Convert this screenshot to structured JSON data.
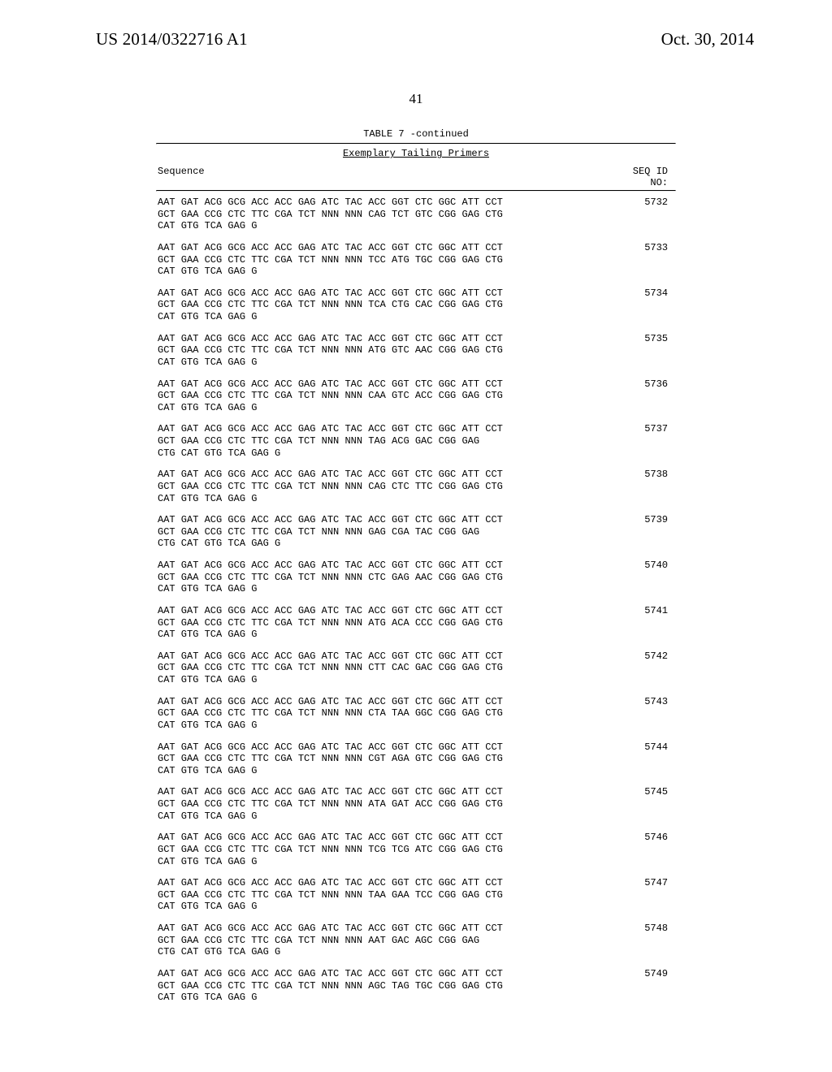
{
  "header": {
    "patent_number": "US 2014/0322716 A1",
    "date": "Oct. 30, 2014"
  },
  "page_number": "41",
  "table": {
    "caption": "TABLE 7 -continued",
    "subheading": "Exemplary Tailing Primers",
    "col_left": "Sequence",
    "col_right_line1": "SEQ ID",
    "col_right_line2": "NO:"
  },
  "entries": [
    {
      "seq": "AAT GAT ACG GCG ACC ACC GAG ATC TAC ACC GGT CTC GGC ATT CCT\nGCT GAA CCG CTC TTC CGA TCT NNN NNN CAG TCT GTC CGG GAG CTG\nCAT GTG TCA GAG G",
      "id": "5732"
    },
    {
      "seq": "AAT GAT ACG GCG ACC ACC GAG ATC TAC ACC GGT CTC GGC ATT CCT\nGCT GAA CCG CTC TTC CGA TCT NNN NNN TCC ATG TGC CGG GAG CTG\nCAT GTG TCA GAG G",
      "id": "5733"
    },
    {
      "seq": "AAT GAT ACG GCG ACC ACC GAG ATC TAC ACC GGT CTC GGC ATT CCT\nGCT GAA CCG CTC TTC CGA TCT NNN NNN TCA CTG CAC CGG GAG CTG\nCAT GTG TCA GAG G",
      "id": "5734"
    },
    {
      "seq": "AAT GAT ACG GCG ACC ACC GAG ATC TAC ACC GGT CTC GGC ATT CCT\nGCT GAA CCG CTC TTC CGA TCT NNN NNN ATG GTC AAC CGG GAG CTG\nCAT GTG TCA GAG G",
      "id": "5735"
    },
    {
      "seq": "AAT GAT ACG GCG ACC ACC GAG ATC TAC ACC GGT CTC GGC ATT CCT\nGCT GAA CCG CTC TTC CGA TCT NNN NNN CAA GTC ACC CGG GAG CTG\nCAT GTG TCA GAG G",
      "id": "5736"
    },
    {
      "seq": "AAT GAT ACG GCG ACC ACC GAG ATC TAC ACC GGT CTC GGC ATT CCT\nGCT GAA CCG CTC TTC CGA TCT NNN NNN TAG ACG GAC CGG GAG\nCTG CAT GTG TCA GAG G",
      "id": "5737"
    },
    {
      "seq": "AAT GAT ACG GCG ACC ACC GAG ATC TAC ACC GGT CTC GGC ATT CCT\nGCT GAA CCG CTC TTC CGA TCT NNN NNN CAG CTC TTC CGG GAG CTG\nCAT GTG TCA GAG G",
      "id": "5738"
    },
    {
      "seq": "AAT GAT ACG GCG ACC ACC GAG ATC TAC ACC GGT CTC GGC ATT CCT\nGCT GAA CCG CTC TTC CGA TCT NNN NNN GAG CGA TAC CGG GAG\nCTG CAT GTG TCA GAG G",
      "id": "5739"
    },
    {
      "seq": "AAT GAT ACG GCG ACC ACC GAG ATC TAC ACC GGT CTC GGC ATT CCT\nGCT GAA CCG CTC TTC CGA TCT NNN NNN CTC GAG AAC CGG GAG CTG\nCAT GTG TCA GAG G",
      "id": "5740"
    },
    {
      "seq": "AAT GAT ACG GCG ACC ACC GAG ATC TAC ACC GGT CTC GGC ATT CCT\nGCT GAA CCG CTC TTC CGA TCT NNN NNN ATG ACA CCC CGG GAG CTG\nCAT GTG TCA GAG G",
      "id": "5741"
    },
    {
      "seq": "AAT GAT ACG GCG ACC ACC GAG ATC TAC ACC GGT CTC GGC ATT CCT\nGCT GAA CCG CTC TTC CGA TCT NNN NNN CTT CAC GAC CGG GAG CTG\nCAT GTG TCA GAG G",
      "id": "5742"
    },
    {
      "seq": "AAT GAT ACG GCG ACC ACC GAG ATC TAC ACC GGT CTC GGC ATT CCT\nGCT GAA CCG CTC TTC CGA TCT NNN NNN CTA TAA GGC CGG GAG CTG\nCAT GTG TCA GAG G",
      "id": "5743"
    },
    {
      "seq": "AAT GAT ACG GCG ACC ACC GAG ATC TAC ACC GGT CTC GGC ATT CCT\nGCT GAA CCG CTC TTC CGA TCT NNN NNN CGT AGA GTC CGG GAG CTG\nCAT GTG TCA GAG G",
      "id": "5744"
    },
    {
      "seq": "AAT GAT ACG GCG ACC ACC GAG ATC TAC ACC GGT CTC GGC ATT CCT\nGCT GAA CCG CTC TTC CGA TCT NNN NNN ATA GAT ACC CGG GAG CTG\nCAT GTG TCA GAG G",
      "id": "5745"
    },
    {
      "seq": "AAT GAT ACG GCG ACC ACC GAG ATC TAC ACC GGT CTC GGC ATT CCT\nGCT GAA CCG CTC TTC CGA TCT NNN NNN TCG TCG ATC CGG GAG CTG\nCAT GTG TCA GAG G",
      "id": "5746"
    },
    {
      "seq": "AAT GAT ACG GCG ACC ACC GAG ATC TAC ACC GGT CTC GGC ATT CCT\nGCT GAA CCG CTC TTC CGA TCT NNN NNN TAA GAA TCC CGG GAG CTG\nCAT GTG TCA GAG G",
      "id": "5747"
    },
    {
      "seq": "AAT GAT ACG GCG ACC ACC GAG ATC TAC ACC GGT CTC GGC ATT CCT\nGCT GAA CCG CTC TTC CGA TCT NNN NNN AAT GAC AGC CGG GAG\nCTG CAT GTG TCA GAG G",
      "id": "5748"
    },
    {
      "seq": "AAT GAT ACG GCG ACC ACC GAG ATC TAC ACC GGT CTC GGC ATT CCT\nGCT GAA CCG CTC TTC CGA TCT NNN NNN AGC TAG TGC CGG GAG CTG\nCAT GTG TCA GAG G",
      "id": "5749"
    }
  ]
}
